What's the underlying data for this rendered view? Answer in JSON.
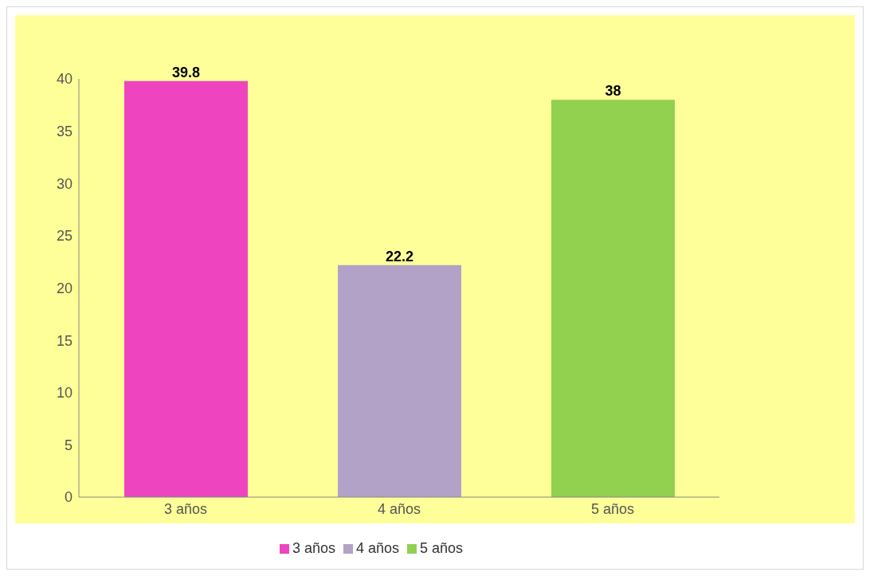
{
  "chart_data": {
    "type": "bar",
    "categories": [
      "3 años",
      "4 años",
      "5 años"
    ],
    "series": [
      {
        "name": "3 años",
        "color": "#ee44bf",
        "values": [
          39.8,
          null,
          null
        ]
      },
      {
        "name": "4 años",
        "color": "#b2a2c8",
        "values": [
          null,
          22.2,
          null
        ]
      },
      {
        "name": "5 años",
        "color": "#92d050",
        "values": [
          null,
          null,
          38
        ]
      }
    ],
    "ylim": [
      0,
      40
    ],
    "yticks": [
      0,
      5,
      10,
      15,
      20,
      25,
      30,
      35,
      40
    ],
    "data_labels": true,
    "legend": "bottom"
  }
}
